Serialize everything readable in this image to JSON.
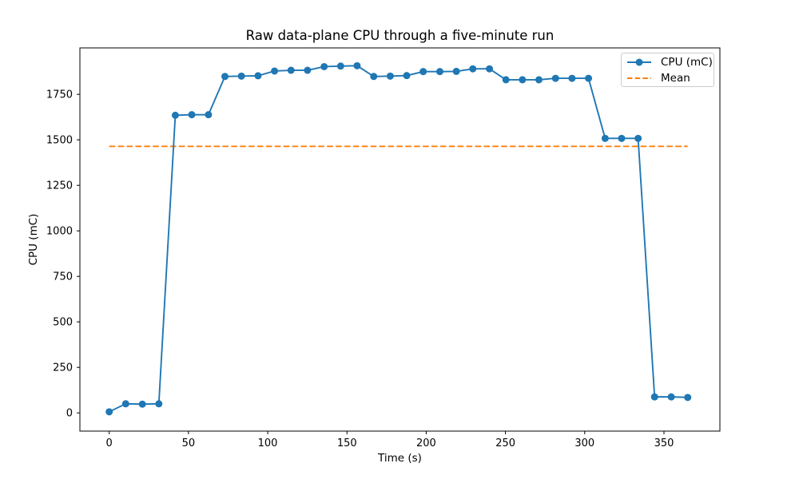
{
  "chart_data": {
    "type": "line",
    "title": "Raw data-plane CPU through a five-minute run",
    "xlabel": "Time (s)",
    "ylabel": "CPU (mC)",
    "legend": [
      "CPU (mC)",
      "Mean"
    ],
    "legend_position": "upper right",
    "grid": false,
    "x": [
      0,
      10.4,
      20.9,
      31.3,
      41.7,
      52.1,
      62.6,
      73,
      83.4,
      93.9,
      104.3,
      114.7,
      125.1,
      135.6,
      146,
      156.4,
      166.9,
      177.3,
      187.7,
      198.1,
      208.6,
      219,
      229.4,
      239.9,
      250.3,
      260.7,
      271.1,
      281.6,
      292,
      302.4,
      312.9,
      323.3,
      333.7,
      344.1,
      354.6,
      365
    ],
    "series": [
      {
        "name": "CPU (mC)",
        "values": [
          6,
          50,
          48,
          50,
          1635,
          1638,
          1638,
          1848,
          1850,
          1852,
          1878,
          1882,
          1882,
          1902,
          1905,
          1907,
          1848,
          1850,
          1853,
          1875,
          1875,
          1876,
          1890,
          1890,
          1830,
          1830,
          1830,
          1838,
          1838,
          1838,
          1508,
          1508,
          1508,
          88,
          88,
          85
        ]
      }
    ],
    "mean": 1464.4,
    "xticks": [
      0,
      50,
      100,
      150,
      200,
      250,
      300,
      350
    ],
    "yticks": [
      0,
      250,
      500,
      750,
      1000,
      1250,
      1500,
      1750
    ],
    "xlim": [
      -18.5,
      385.3
    ],
    "ylim": [
      -100,
      2005
    ],
    "colors": {
      "cpu_line": "#1f77b4",
      "mean_line": "#ff7f0e",
      "axes": "#000000",
      "text": "#000000",
      "legend_border": "#cccccc"
    }
  }
}
